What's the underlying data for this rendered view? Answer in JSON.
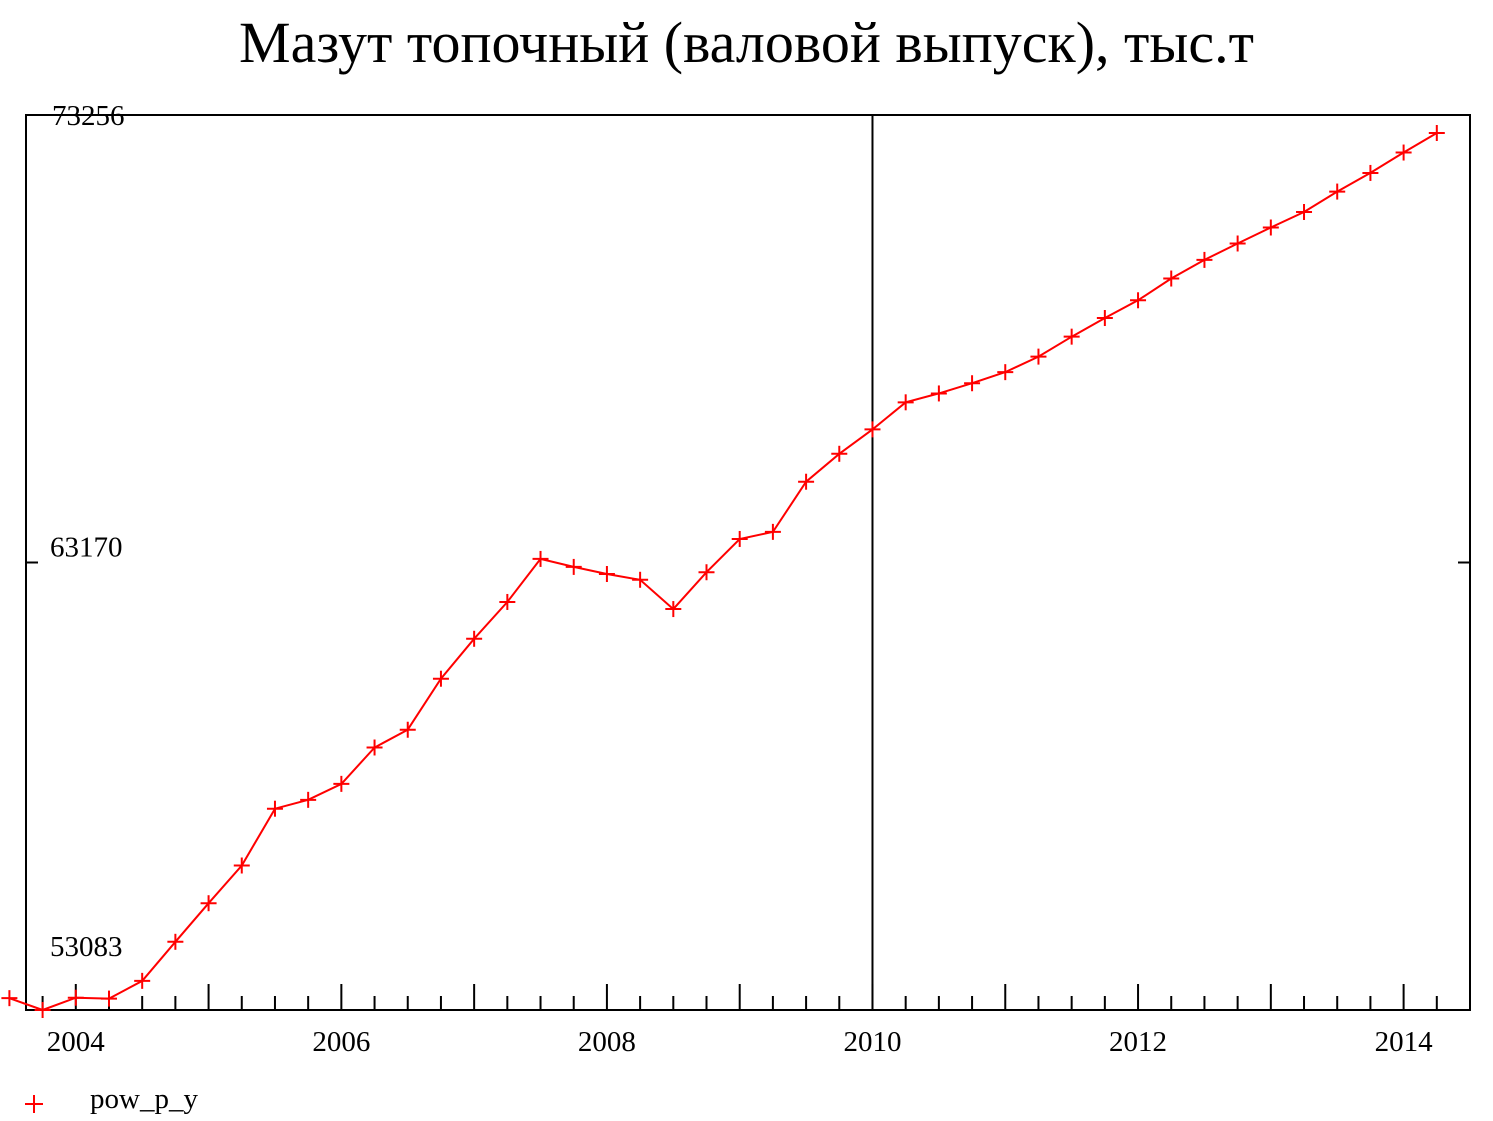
{
  "chart_data": {
    "type": "line",
    "title": "Мазут топочный (валовой выпуск), тыс.т",
    "xlabel": "",
    "ylabel": "",
    "ylim": [
      53083,
      73256
    ],
    "y_tick_labels": [
      "73256",
      "63170",
      "53083"
    ],
    "x_ticks": [
      2004,
      2006,
      2008,
      2010,
      2012,
      2014
    ],
    "x_tick_labels": [
      "2004",
      "2006",
      "2008",
      "2010",
      "2012",
      "2014"
    ],
    "xlim": [
      2003.625,
      2014.5
    ],
    "vertical_reference_line": 2010,
    "grid": false,
    "legend_position": "bottom-left",
    "series": [
      {
        "name": "pow_p_y",
        "color": "#ff0000",
        "marker": "plus",
        "x": [
          "2003Q3",
          "2003Q4",
          "2004Q1",
          "2004Q2",
          "2004Q3",
          "2004Q4",
          "2005Q1",
          "2005Q2",
          "2005Q3",
          "2005Q4",
          "2006Q1",
          "2006Q2",
          "2006Q3",
          "2006Q4",
          "2007Q1",
          "2007Q2",
          "2007Q3",
          "2007Q4",
          "2008Q1",
          "2008Q2",
          "2008Q3",
          "2008Q4",
          "2009Q1",
          "2009Q2",
          "2009Q3",
          "2009Q4",
          "2010Q1",
          "2010Q2",
          "2010Q3",
          "2010Q4",
          "2011Q1",
          "2011Q2",
          "2011Q3",
          "2011Q4",
          "2012Q1",
          "2012Q2",
          "2012Q3",
          "2012Q4",
          "2013Q1",
          "2013Q2",
          "2013Q3",
          "2013Q4",
          "2014Q1",
          "2014Q2"
        ],
        "values": [
          53350,
          53083,
          53360,
          53340,
          53740,
          54620,
          55490,
          56340,
          57620,
          57820,
          58180,
          59000,
          59400,
          60550,
          61450,
          62280,
          63250,
          63070,
          62910,
          62780,
          62120,
          62950,
          63700,
          63860,
          64990,
          65620,
          66170,
          66780,
          66980,
          67210,
          67460,
          67810,
          68260,
          68680,
          69080,
          69570,
          69990,
          70360,
          70720,
          71070,
          71530,
          71950,
          72410,
          72850
        ]
      }
    ]
  }
}
